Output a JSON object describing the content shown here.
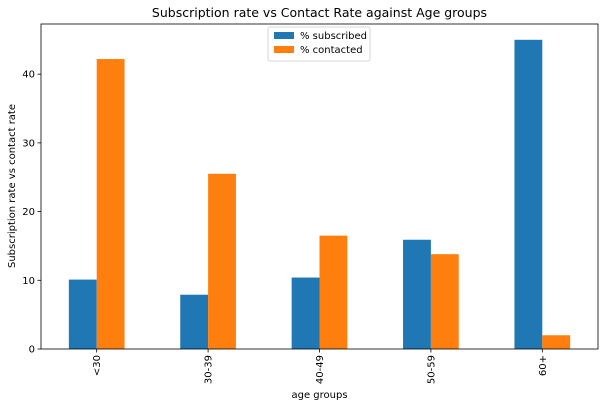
{
  "chart_data": {
    "type": "bar",
    "title": "Subscription rate vs Contact Rate against Age groups",
    "xlabel": "age groups",
    "ylabel": "Subscription rate vs contact rate",
    "categories": [
      "<30",
      "30-39",
      "40-49",
      "50-59",
      "60+"
    ],
    "series": [
      {
        "name": "% subscribed",
        "color": "#1f77b4",
        "values": [
          10.1,
          7.9,
          10.4,
          15.9,
          45.0
        ]
      },
      {
        "name": "% contacted",
        "color": "#ff7f0e",
        "values": [
          42.2,
          25.5,
          16.5,
          13.8,
          2.0
        ]
      }
    ],
    "ylim": [
      0,
      47.3
    ],
    "yticks": [
      0,
      10,
      20,
      30,
      40
    ],
    "legend_position": "top-center",
    "grid": false
  }
}
